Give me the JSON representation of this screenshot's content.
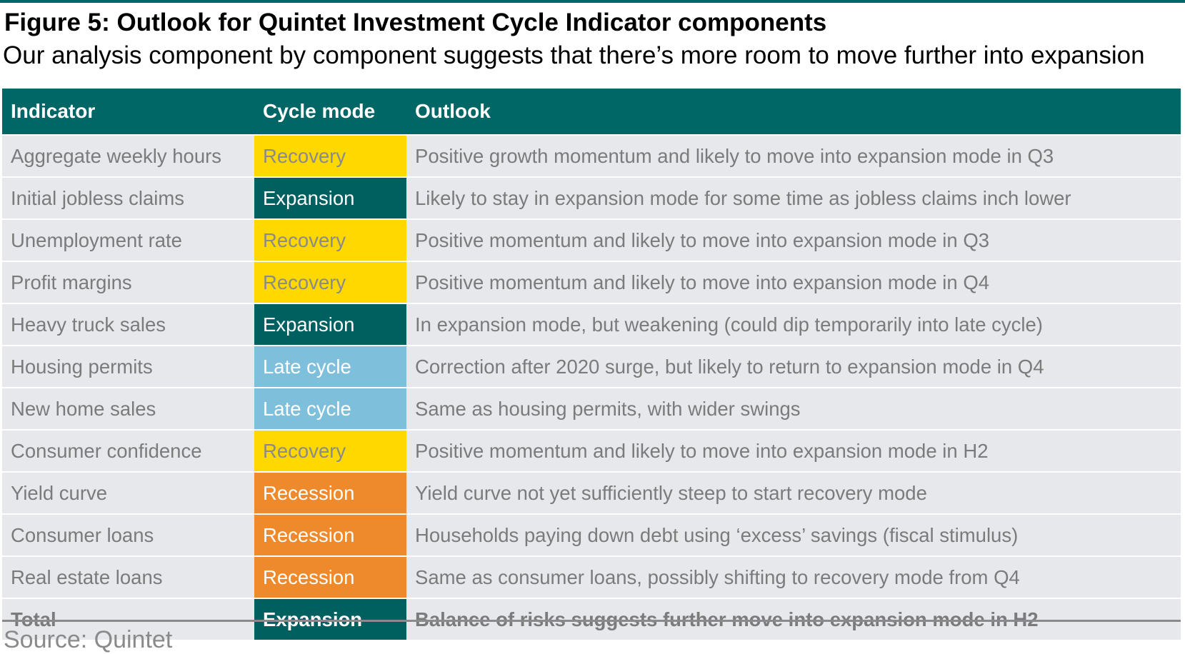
{
  "title": "Figure 5: Outlook for Quintet Investment Cycle Indicator components",
  "subtitle": "Our analysis component by component suggests that there’s more room to move further into expansion",
  "table": {
    "headers": [
      "Indicator",
      "Cycle mode",
      "Outlook"
    ],
    "rows": [
      {
        "indicator": "Aggregate weekly hours",
        "mode": "Recovery",
        "mode_class": "recovery",
        "outlook": "Positive growth momentum and likely to move into expansion mode in Q3"
      },
      {
        "indicator": "Initial jobless claims",
        "mode": "Expansion",
        "mode_class": "expansion",
        "outlook": "Likely to stay in expansion mode for some time as jobless claims inch lower"
      },
      {
        "indicator": "Unemployment rate",
        "mode": "Recovery",
        "mode_class": "recovery",
        "outlook": "Positive momentum and likely to move into expansion mode in Q3"
      },
      {
        "indicator": "Profit margins",
        "mode": "Recovery",
        "mode_class": "recovery",
        "outlook": "Positive momentum and likely to move into expansion mode in Q4"
      },
      {
        "indicator": "Heavy truck sales",
        "mode": "Expansion",
        "mode_class": "expansion",
        "outlook": "In expansion mode, but weakening (could dip temporarily into late cycle)"
      },
      {
        "indicator": "Housing permits",
        "mode": "Late cycle",
        "mode_class": "late",
        "outlook": "Correction after 2020 surge, but likely to return to expansion mode in Q4"
      },
      {
        "indicator": "New home sales",
        "mode": "Late cycle",
        "mode_class": "late",
        "outlook": "Same as housing permits, with wider swings"
      },
      {
        "indicator": "Consumer confidence",
        "mode": "Recovery",
        "mode_class": "recovery",
        "outlook": "Positive momentum and likely to move into expansion mode in H2"
      },
      {
        "indicator": "Yield curve",
        "mode": "Recession",
        "mode_class": "recession",
        "outlook": "Yield curve not yet sufficiently steep to start recovery mode"
      },
      {
        "indicator": "Consumer loans",
        "mode": "Recession",
        "mode_class": "recession",
        "outlook": "Households paying down debt using ‘excess’ savings (fiscal stimulus)"
      },
      {
        "indicator": "Real estate loans",
        "mode": "Recession",
        "mode_class": "recession",
        "outlook": "Same as consumer loans, possibly shifting to recovery mode from Q4"
      }
    ],
    "total": {
      "indicator": "Total",
      "mode": "Expansion",
      "mode_class": "expansion",
      "outlook": "Balance of risks suggests further move into expansion mode in H2"
    }
  },
  "mode_colors": {
    "recovery": "#ffd800",
    "expansion": "#005f5f",
    "late": "#7ec0dc",
    "recession": "#ef8a2c",
    "header": "#006666"
  },
  "source": "Source: Quintet"
}
